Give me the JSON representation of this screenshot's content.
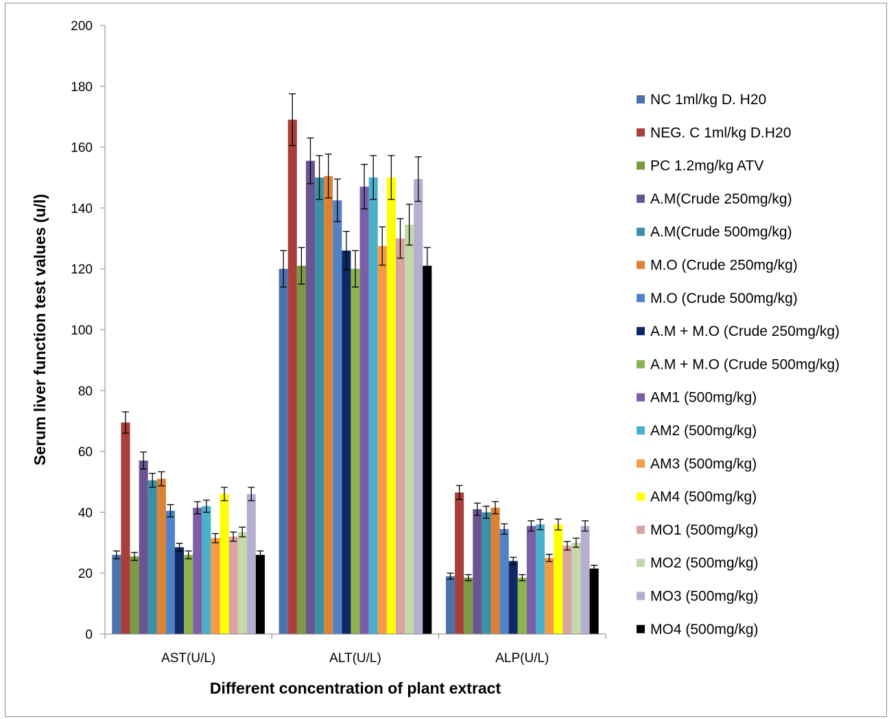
{
  "chart_data": {
    "type": "bar",
    "title": "",
    "xlabel": "Different concentration of plant extract",
    "ylabel": "Serum liver function test values (u/l)",
    "ylim": [
      0,
      200
    ],
    "yticks": [
      0,
      20,
      40,
      60,
      80,
      100,
      120,
      140,
      160,
      180,
      200
    ],
    "categories": [
      "AST(U/L)",
      "ALT(U/L)",
      "ALP(U/L)"
    ],
    "legend_position": "right",
    "series": [
      {
        "name": "NC 1ml/kg D. H20",
        "color": "#4a73ad",
        "values": [
          26,
          120,
          19
        ],
        "errors": [
          1.3,
          6,
          1
        ]
      },
      {
        "name": "NEG. C 1ml/kg D.H20",
        "color": "#a83f3b",
        "values": [
          69.5,
          169,
          46.5
        ],
        "errors": [
          3.5,
          8.5,
          2.3
        ]
      },
      {
        "name": "PC 1.2mg/kg ATV",
        "color": "#7c9a44",
        "values": [
          25.5,
          121,
          18.5
        ],
        "errors": [
          1.3,
          6,
          1
        ]
      },
      {
        "name": "A.M(Crude 250mg/kg)",
        "color": "#6a5592",
        "values": [
          57,
          155.5,
          41
        ],
        "errors": [
          2.8,
          7.5,
          2
        ]
      },
      {
        "name": "A.M(Crude 500mg/kg)",
        "color": "#3b90a6",
        "values": [
          50.5,
          150,
          40
        ],
        "errors": [
          2.3,
          7.2,
          2
        ]
      },
      {
        "name": "M.O (Crude 250mg/kg)",
        "color": "#db8234",
        "values": [
          51,
          150.5,
          41.5
        ],
        "errors": [
          2.3,
          7.2,
          2
        ]
      },
      {
        "name": "M.O (Crude 500mg/kg)",
        "color": "#4f82c6",
        "values": [
          40.5,
          142.5,
          34.5
        ],
        "errors": [
          2,
          7,
          1.7
        ]
      },
      {
        "name": "A.M + M.O (Crude 250mg/kg)",
        "color": "#0e2864",
        "values": [
          28.5,
          126,
          24
        ],
        "errors": [
          1.3,
          6.3,
          1.2
        ]
      },
      {
        "name": "A.M + M.O (Crude 500mg/kg)",
        "color": "#8db34f",
        "values": [
          26,
          120,
          18.5
        ],
        "errors": [
          1.3,
          6,
          1
        ]
      },
      {
        "name": "AM1 (500mg/kg)",
        "color": "#7a5ea8",
        "values": [
          41.5,
          147,
          35.5
        ],
        "errors": [
          2,
          7.3,
          1.7
        ]
      },
      {
        "name": "AM2 (500mg/kg)",
        "color": "#4bb1cb",
        "values": [
          42,
          150,
          36
        ],
        "errors": [
          2,
          7.2,
          1.7
        ]
      },
      {
        "name": "AM3 (500mg/kg)",
        "color": "#f59b48",
        "values": [
          31.5,
          127.5,
          25
        ],
        "errors": [
          1.5,
          6.3,
          1.2
        ]
      },
      {
        "name": "AM4 (500mg/kg)",
        "color": "#ffff00",
        "values": [
          46,
          150,
          36
        ],
        "errors": [
          2.2,
          7.2,
          1.8
        ]
      },
      {
        "name": "MO1 (500mg/kg)",
        "color": "#d9a3a1",
        "values": [
          32,
          130,
          29
        ],
        "errors": [
          1.5,
          6.5,
          1.4
        ]
      },
      {
        "name": "MO2 (500mg/kg)",
        "color": "#c5d8a8",
        "values": [
          33.5,
          134.5,
          30
        ],
        "errors": [
          1.6,
          6.7,
          1.5
        ]
      },
      {
        "name": "MO3 (500mg/kg)",
        "color": "#b5aed1",
        "values": [
          46,
          149.5,
          35.5
        ],
        "errors": [
          2.2,
          7.3,
          1.7
        ]
      },
      {
        "name": "MO4 (500mg/kg)",
        "color": "#000000",
        "values": [
          26,
          121,
          21.5
        ],
        "errors": [
          1.3,
          6,
          1.1
        ]
      }
    ]
  }
}
